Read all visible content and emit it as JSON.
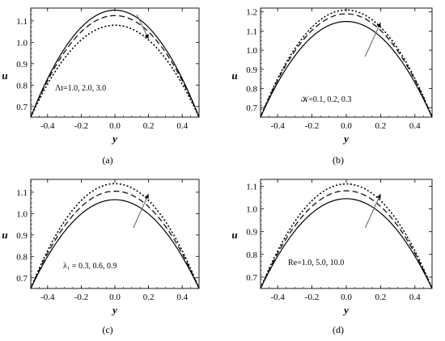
{
  "chart_data": [
    {
      "type": "line",
      "xlabel": "y",
      "ylabel": "u",
      "xlim": [
        -0.5,
        0.5
      ],
      "ylim": [
        0.65,
        1.16
      ],
      "xticks": [
        "-0.4",
        "-0.2",
        "0.0",
        "0.2",
        "0.4"
      ],
      "yticks": [
        "0.7",
        "0.8",
        "0.9",
        "1.0",
        "1.1"
      ],
      "annotation": "Λt=1.0, 2.0, 3.0",
      "caption": "(a)",
      "arrow_direction": "down",
      "series": [
        {
          "style": "solid",
          "apex": 1.15,
          "edge": 0.65
        },
        {
          "style": "dashed",
          "apex": 1.125,
          "edge": 0.65
        },
        {
          "style": "dotted",
          "apex": 1.08,
          "edge": 0.65
        }
      ]
    },
    {
      "type": "line",
      "xlabel": "y",
      "ylabel": "u",
      "xlim": [
        -0.5,
        0.5
      ],
      "ylim": [
        0.65,
        1.22
      ],
      "xticks": [
        "-0.4",
        "-0.2",
        "0.0",
        "0.2",
        "0.4"
      ],
      "yticks": [
        "0.7",
        "0.8",
        "0.9",
        "1.0",
        "1.1",
        "1.2"
      ],
      "annotation": "𝒦=0.1, 0.2, 0.3",
      "caption": "(b)",
      "arrow_direction": "up",
      "series": [
        {
          "style": "solid",
          "apex": 1.15,
          "edge": 0.65
        },
        {
          "style": "dashed",
          "apex": 1.19,
          "edge": 0.65
        },
        {
          "style": "dotted",
          "apex": 1.21,
          "edge": 0.65
        }
      ]
    },
    {
      "type": "line",
      "xlabel": "y",
      "ylabel": "u",
      "xlim": [
        -0.5,
        0.5
      ],
      "ylim": [
        0.65,
        1.16
      ],
      "xticks": [
        "-0.4",
        "-0.2",
        "0.0",
        "0.2",
        "0.4"
      ],
      "yticks": [
        "0.7",
        "0.8",
        "0.9",
        "1.0",
        "1.1"
      ],
      "annotation": "λ₁ = 0.3, 0.6, 0.9",
      "caption": "(c)",
      "arrow_direction": "up",
      "series": [
        {
          "style": "solid",
          "apex": 1.065,
          "edge": 0.65
        },
        {
          "style": "dashed",
          "apex": 1.105,
          "edge": 0.65
        },
        {
          "style": "dotted",
          "apex": 1.14,
          "edge": 0.65
        }
      ]
    },
    {
      "type": "line",
      "xlabel": "y",
      "ylabel": "u",
      "xlim": [
        -0.5,
        0.5
      ],
      "ylim": [
        0.65,
        1.13
      ],
      "xticks": [
        "-0.4",
        "-0.2",
        "0.0",
        "0.2",
        "0.4"
      ],
      "yticks": [
        "0.7",
        "0.8",
        "0.9",
        "1.0",
        "1.1"
      ],
      "annotation": "Re=1.0, 5.0, 10.0",
      "caption": "(d)",
      "arrow_direction": "up",
      "series": [
        {
          "style": "solid",
          "apex": 1.045,
          "edge": 0.65
        },
        {
          "style": "dashed",
          "apex": 1.08,
          "edge": 0.65
        },
        {
          "style": "dotted",
          "apex": 1.11,
          "edge": 0.65
        }
      ]
    }
  ]
}
